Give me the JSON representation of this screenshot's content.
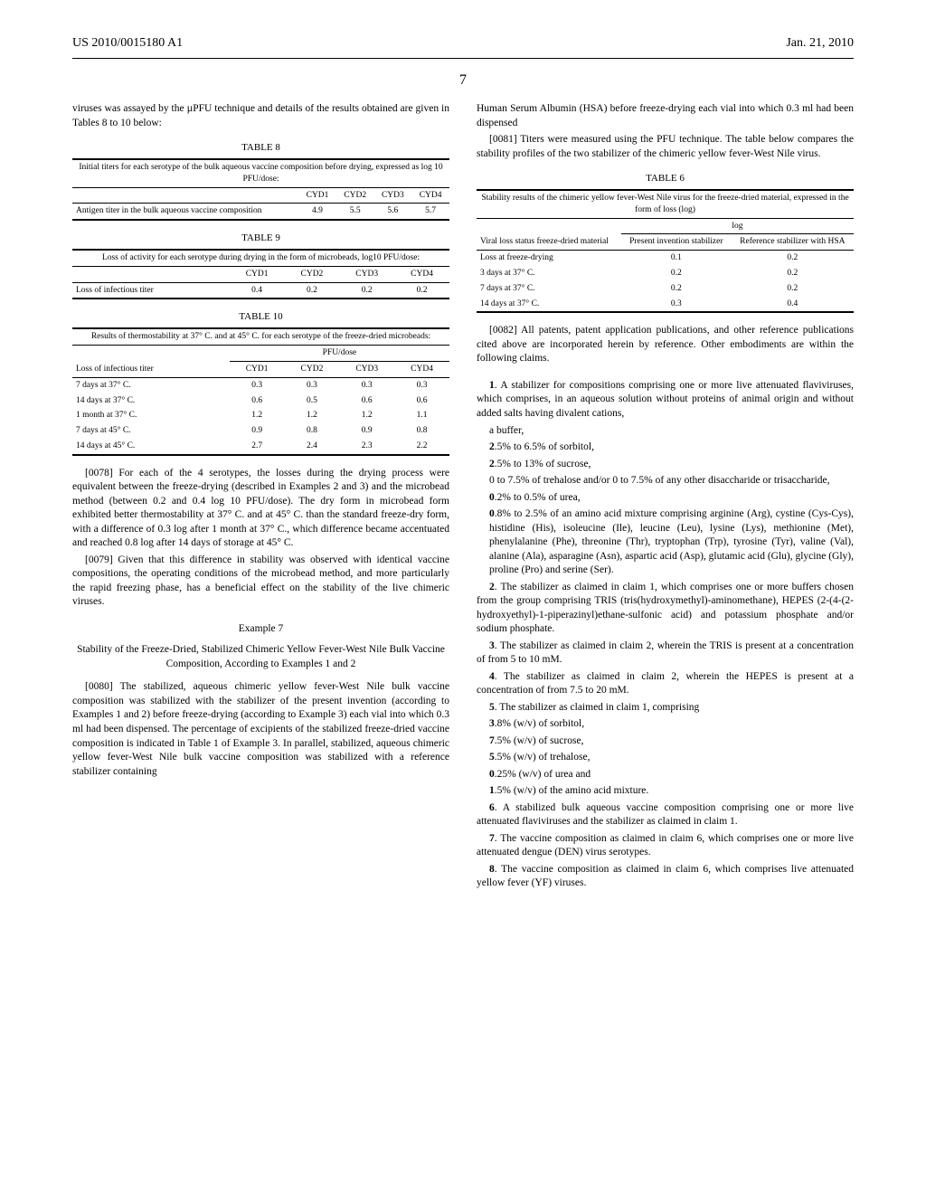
{
  "header": {
    "pub_number": "US 2010/0015180 A1",
    "pub_date": "Jan. 21, 2010"
  },
  "page_number": "7",
  "col1": {
    "para_intro": "viruses was assayed by the µPFU technique and details of the results obtained are given in Tables 8 to 10 below:",
    "table8": {
      "title": "TABLE 8",
      "caption": "Initial titers for each serotype of the bulk aqueous vaccine composition before drying, expressed as log 10 PFU/dose:",
      "headers": [
        "",
        "CYD1",
        "CYD2",
        "CYD3",
        "CYD4"
      ],
      "row_label": "Antigen titer in the bulk aqueous vaccine composition",
      "values": [
        "4.9",
        "5.5",
        "5.6",
        "5.7"
      ]
    },
    "table9": {
      "title": "TABLE 9",
      "caption": "Loss of activity for each serotype during drying in the form of microbeads, log10 PFU/dose:",
      "headers": [
        "",
        "CYD1",
        "CYD2",
        "CYD3",
        "CYD4"
      ],
      "row_label": "Loss of infectious titer",
      "values": [
        "0.4",
        "0.2",
        "0.2",
        "0.2"
      ]
    },
    "table10": {
      "title": "TABLE 10",
      "caption": "Results of thermostability at 37° C. and at 45° C. for each serotype of the freeze-dried microbeads:",
      "span_header": "PFU/dose",
      "col_header": "Loss of infectious titer",
      "headers": [
        "CYD1",
        "CYD2",
        "CYD3",
        "CYD4"
      ],
      "rows": [
        {
          "label": "7 days at 37° C.",
          "v": [
            "0.3",
            "0.3",
            "0.3",
            "0.3"
          ]
        },
        {
          "label": "14 days at 37° C.",
          "v": [
            "0.6",
            "0.5",
            "0.6",
            "0.6"
          ]
        },
        {
          "label": "1 month at 37° C.",
          "v": [
            "1.2",
            "1.2",
            "1.2",
            "1.1"
          ]
        },
        {
          "label": "7 days at 45° C.",
          "v": [
            "0.9",
            "0.8",
            "0.9",
            "0.8"
          ]
        },
        {
          "label": "14 days at 45° C.",
          "v": [
            "2.7",
            "2.4",
            "2.3",
            "2.2"
          ]
        }
      ]
    },
    "para78": "[0078]   For each of the 4 serotypes, the losses during the drying process were equivalent between the freeze-drying (described in Examples 2 and 3) and the microbead method (between 0.2 and 0.4 log 10 PFU/dose). The dry form in microbead form exhibited better thermostability at 37° C. and at 45° C. than the standard freeze-dry form, with a difference of 0.3 log after 1 month at 37° C., which difference became accentuated and reached 0.8 log after 14 days of storage at 45° C.",
    "para79": "[0079]   Given that this difference in stability was observed with identical vaccine compositions, the operating conditions of the microbead method, and more particularly the rapid freezing phase, has a beneficial effect on the stability of the live chimeric viruses.",
    "example7_title": "Example 7",
    "example7_sub": "Stability of the Freeze-Dried, Stabilized Chimeric Yellow Fever-West Nile Bulk Vaccine Composition, According to Examples 1 and 2",
    "para80": "[0080]   The stabilized, aqueous chimeric yellow fever-West Nile bulk vaccine composition was stabilized with the stabilizer of the present invention (according to Examples 1 and 2) before freeze-drying (according to Example 3) each vial into which 0.3 ml had been dispensed. The percentage of excipients of the stabilized freeze-dried vaccine composition is indicated in Table 1 of Example 3. In parallel, stabilized, aqueous chimeric yellow fever-West Nile bulk vaccine composition was stabilized with a reference stabilizer containing"
  },
  "col2": {
    "para_cont": "Human Serum Albumin (HSA) before freeze-drying each vial into which 0.3 ml had been dispensed",
    "para81": "[0081]   Titers were measured using the PFU technique. The table below compares the stability profiles of the two stabilizer of the chimeric yellow fever-West Nile virus.",
    "table6": {
      "title": "TABLE 6",
      "caption": "Stability results of the chimeric yellow fever-West Nile virus for the freeze-dried material, expressed in the form of loss (log)",
      "span_header": "log",
      "col1_header": "Viral loss status freeze-dried material",
      "col2_header": "Present invention stabilizer",
      "col3_header": "Reference stabilizer with HSA",
      "rows": [
        {
          "label": "Loss at freeze-drying",
          "v": [
            "0.1",
            "0.2"
          ]
        },
        {
          "label": "3 days at 37° C.",
          "v": [
            "0.2",
            "0.2"
          ]
        },
        {
          "label": "7 days at 37° C.",
          "v": [
            "0.2",
            "0.2"
          ]
        },
        {
          "label": "14 days at 37° C.",
          "v": [
            "0.3",
            "0.4"
          ]
        }
      ]
    },
    "para82": "[0082]   All patents, patent application publications, and other reference publications cited above are incorporated herein by reference. Other embodiments are within the following claims.",
    "claim1": "1. A stabilizer for compositions comprising one or more live attenuated flaviviruses, which comprises, in an aqueous solution without proteins of animal origin and without added salts having divalent cations,",
    "claim1_items": [
      "a buffer,",
      "2.5% to 6.5% of sorbitol,",
      "2.5% to 13% of sucrose,",
      "0 to 7.5% of trehalose and/or 0 to 7.5% of any other disaccharide or trisaccharide,",
      "0.2% to 0.5% of urea,",
      "0.8% to 2.5% of an amino acid mixture comprising arginine (Arg), cystine (Cys-Cys), histidine (His), isoleucine (Ile), leucine (Leu), lysine (Lys), methionine (Met), phenylalanine (Phe), threonine (Thr), tryptophan (Trp), tyrosine (Tyr), valine (Val), alanine (Ala), asparagine (Asn), aspartic acid (Asp), glutamic acid (Glu), glycine (Gly), proline (Pro) and serine (Ser)."
    ],
    "claim2": "2. The stabilizer as claimed in claim 1, which comprises one or more buffers chosen from the group comprising TRIS (tris(hydroxymethyl)-aminomethane), HEPES (2-(4-(2-hydroxyethyl)-1-piperazinyl)ethane-sulfonic acid) and potassium phosphate and/or sodium phosphate.",
    "claim3": "3. The stabilizer as claimed in claim 2, wherein the TRIS is present at a concentration of from 5 to 10 mM.",
    "claim4": "4. The stabilizer as claimed in claim 2, wherein the HEPES is present at a concentration of from 7.5 to 20 mM.",
    "claim5": "5. The stabilizer as claimed in claim 1, comprising",
    "claim5_items": [
      "3.8% (w/v) of sorbitol,",
      "7.5% (w/v) of sucrose,",
      "5.5% (w/v) of trehalose,",
      "0.25% (w/v) of urea and",
      "1.5% (w/v) of the amino acid mixture."
    ],
    "claim6": "6. A stabilized bulk aqueous vaccine composition comprising one or more live attenuated flaviviruses and the stabilizer as claimed in claim 1.",
    "claim7": "7. The vaccine composition as claimed in claim 6, which comprises one or more live attenuated dengue (DEN) virus serotypes.",
    "claim8": "8. The vaccine composition as claimed in claim 6, which comprises live attenuated yellow fever (YF) viruses."
  }
}
